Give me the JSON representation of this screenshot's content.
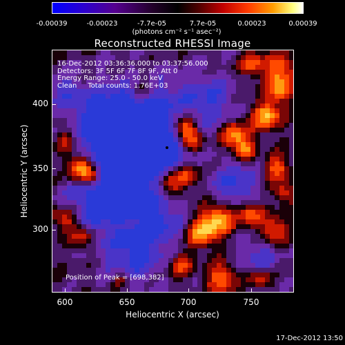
{
  "colorbar": {
    "ticks": [
      "-0.00039",
      "-0.00023",
      "-7.7e-05",
      "7.7e-05",
      "0.00023",
      "0.00039"
    ],
    "unit": "(photons cm⁻² s⁻¹ asec⁻²)"
  },
  "title": "Reconstructed RHESSI Image",
  "info": {
    "line1": "16-Dec-2012 03:36:36.000 to 03:37:56.000",
    "line2": "Detectors: 3F 5F 6F 7F 8F 9F, Att 0",
    "line3": "Energy Range: 25.0 - 50.0 keV",
    "line4": "Clean     Total counts: 1.76E+03"
  },
  "peak_label": "Position of Peak = [698,382]",
  "axes": {
    "xlabel": "Heliocentric X (arcsec)",
    "ylabel": "Heliocentric Y (arcsec)",
    "xticks": [
      "600",
      "650",
      "700",
      "750"
    ],
    "yticks": [
      "400",
      "350",
      "300"
    ]
  },
  "timestamp": "17-Dec-2012 13:50"
}
